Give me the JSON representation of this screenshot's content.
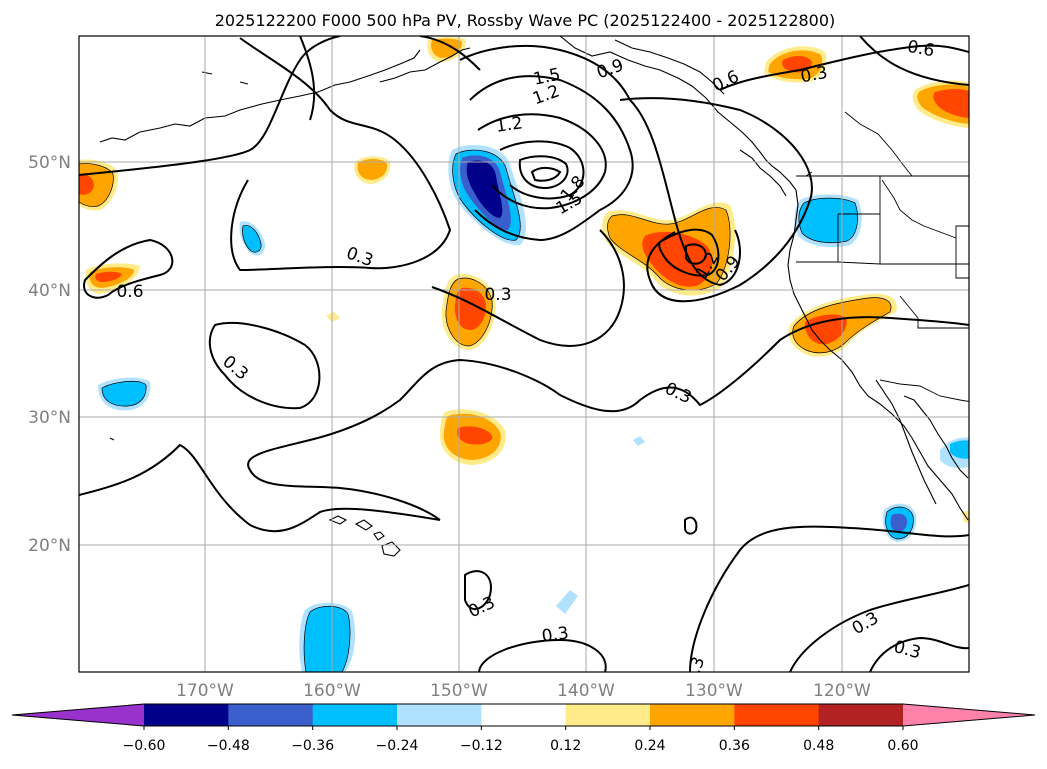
{
  "title": "2025122200 F000 500 hPa PV, Rossby Wave PC (2025122400 - 2025122800)",
  "lat_labels": [
    "50°N",
    "40°N",
    "30°N",
    "20°N"
  ],
  "lon_labels": [
    "170°W",
    "160°W",
    "150°W",
    "140°W",
    "130°W",
    "120°W"
  ],
  "contour_labels": [
    "1.5",
    "1.2",
    "0.9",
    "0.6",
    "0.3",
    "1.2",
    "1.8",
    "1.5",
    "0.3",
    "0.6",
    "0.3",
    "0.3",
    "1.2",
    "0.9",
    "0.3",
    "0.3",
    "0.3",
    "0.3",
    "0.3",
    "0.3",
    "0.6"
  ],
  "colorbar": {
    "tick_labels": [
      "−0.60",
      "−0.48",
      "−0.36",
      "−0.24",
      "−0.12",
      "0.12",
      "0.24",
      "0.36",
      "0.48",
      "0.60"
    ],
    "colors": [
      "#9932cc",
      "#00008b",
      "#3a5fcd",
      "#00bfff",
      "#b0e2ff",
      "#ffffff",
      "#ffeb8a",
      "#ffa500",
      "#ff4500",
      "#b22222",
      "#ff82ab"
    ]
  }
}
